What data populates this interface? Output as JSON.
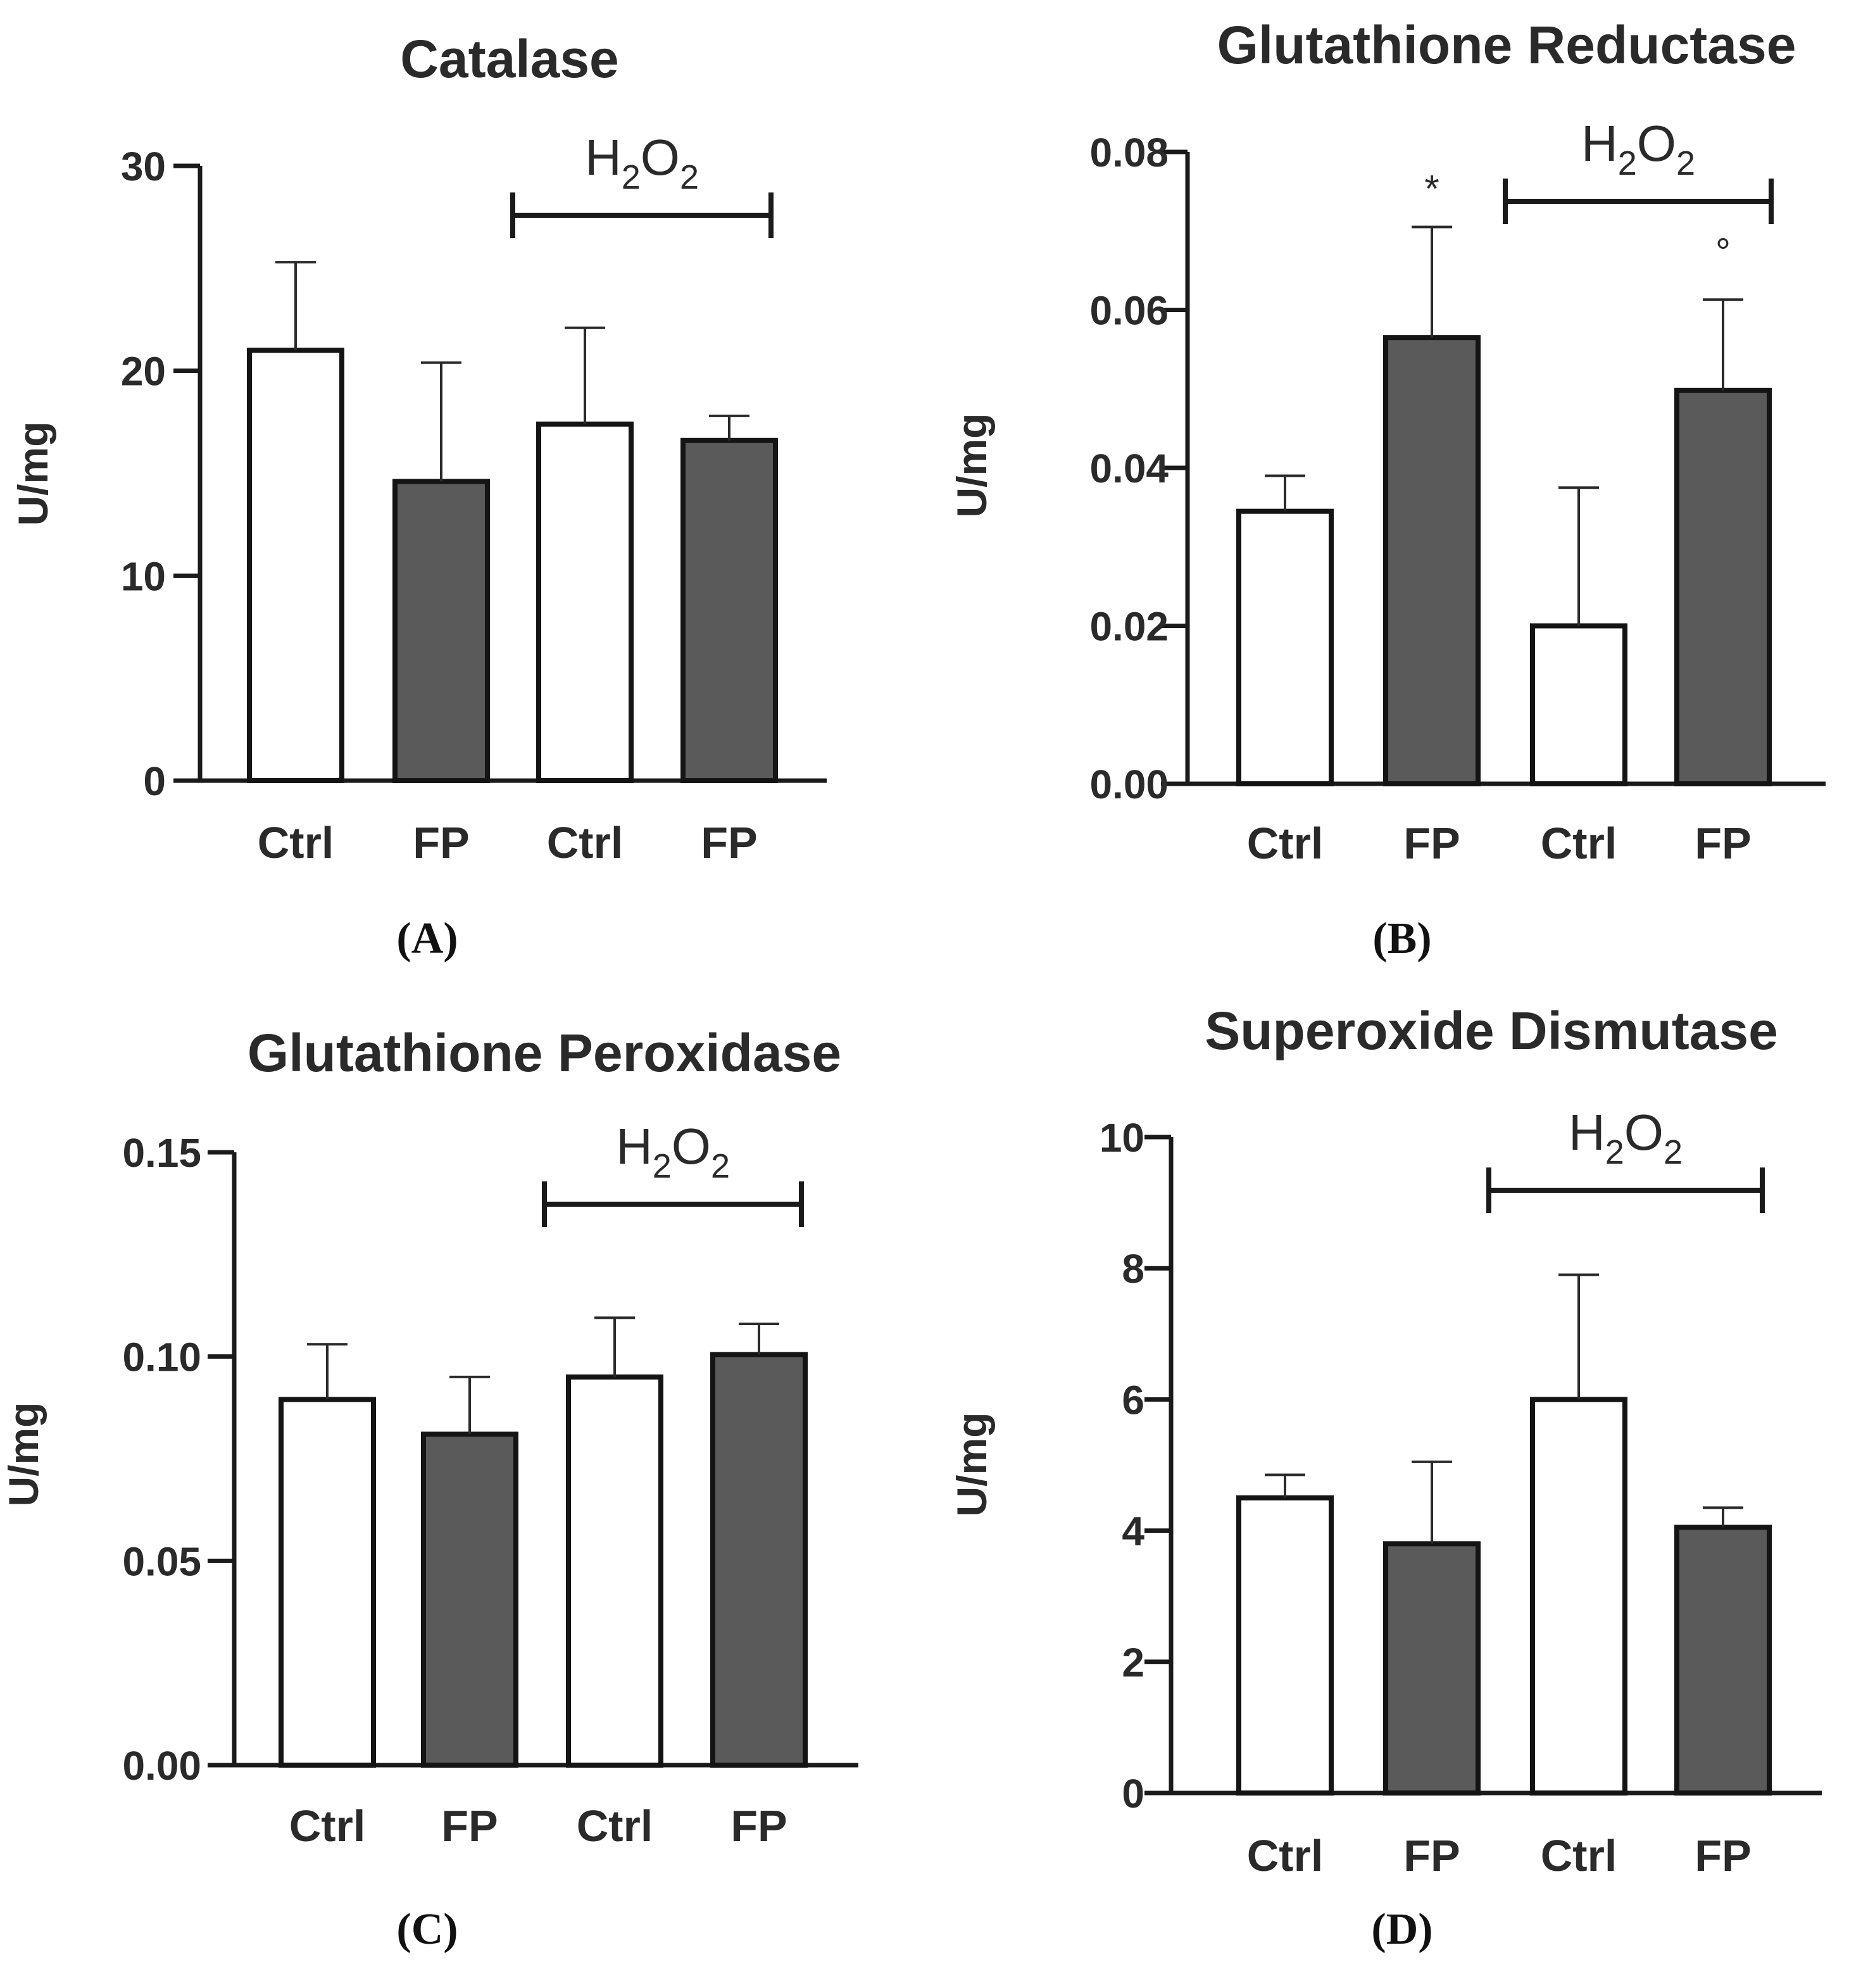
{
  "colors": {
    "control_fill": "#ffffff",
    "fp_fill": "#5a5a5a",
    "ink": "#1a1a1a"
  },
  "chart_data": [
    {
      "type": "bar",
      "panel": "(A)",
      "title": "Catalase",
      "ylabel": "U/mg",
      "xlabel": "",
      "ylim": [
        0,
        30
      ],
      "yticks": [
        "0",
        "10",
        "20",
        "30"
      ],
      "categories": [
        "Ctrl",
        "FP",
        "Ctrl",
        "FP"
      ],
      "groups": [
        "control",
        "fp",
        "control",
        "fp"
      ],
      "values": [
        21.0,
        14.6,
        17.4,
        16.6
      ],
      "errors": [
        4.3,
        5.8,
        4.7,
        1.2
      ],
      "bracket_label": {
        "base": "H",
        "sub1": "2",
        "mid": "O",
        "sub2": "2"
      },
      "bracket_span": [
        2,
        3
      ],
      "annotations": [
        "",
        "",
        "",
        ""
      ]
    },
    {
      "type": "bar",
      "panel": "(B)",
      "title": "Glutathione Reductase",
      "ylabel": "U/mg",
      "xlabel": "",
      "ylim": [
        0,
        0.08
      ],
      "yticks": [
        "0.00",
        "0.02",
        "0.04",
        "0.06",
        "0.08"
      ],
      "categories": [
        "Ctrl",
        "FP",
        "Ctrl",
        "FP"
      ],
      "groups": [
        "control",
        "fp",
        "control",
        "fp"
      ],
      "values": [
        0.0345,
        0.0565,
        0.02,
        0.0498
      ],
      "errors": [
        0.0045,
        0.014,
        0.0175,
        0.0115
      ],
      "bracket_label": {
        "base": "H",
        "sub1": "2",
        "mid": "O",
        "sub2": "2"
      },
      "bracket_span": [
        2,
        3
      ],
      "annotations": [
        "",
        "*",
        "",
        "°"
      ]
    },
    {
      "type": "bar",
      "panel": "(C)",
      "title": "Glutathione Peroxidase",
      "ylabel": "U/mg",
      "xlabel": "",
      "ylim": [
        0,
        0.15
      ],
      "yticks": [
        "0.00",
        "0.05",
        "0.10",
        "0.15"
      ],
      "categories": [
        "Ctrl",
        "FP",
        "Ctrl",
        "FP"
      ],
      "groups": [
        "control",
        "fp",
        "control",
        "fp"
      ],
      "values": [
        0.0895,
        0.081,
        0.095,
        0.1005
      ],
      "errors": [
        0.0135,
        0.014,
        0.0145,
        0.0075
      ],
      "bracket_label": {
        "base": "H",
        "sub1": "2",
        "mid": "O",
        "sub2": "2"
      },
      "bracket_span": [
        2,
        3
      ],
      "annotations": [
        "",
        "",
        "",
        ""
      ]
    },
    {
      "type": "bar",
      "panel": "(D)",
      "title": "Superoxide Dismutase",
      "ylabel": "U/mg",
      "xlabel": "",
      "ylim": [
        0,
        10
      ],
      "yticks": [
        "0",
        "2",
        "4",
        "6",
        "8",
        "10"
      ],
      "categories": [
        "Ctrl",
        "FP",
        "Ctrl",
        "FP"
      ],
      "groups": [
        "control",
        "fp",
        "control",
        "fp"
      ],
      "values": [
        4.5,
        3.8,
        6.0,
        4.05
      ],
      "errors": [
        0.35,
        1.25,
        1.9,
        0.3
      ],
      "bracket_label": {
        "base": "H",
        "sub1": "2",
        "mid": "O",
        "sub2": "2"
      },
      "bracket_span": [
        2,
        3
      ],
      "annotations": [
        "",
        "",
        "",
        ""
      ]
    }
  ]
}
